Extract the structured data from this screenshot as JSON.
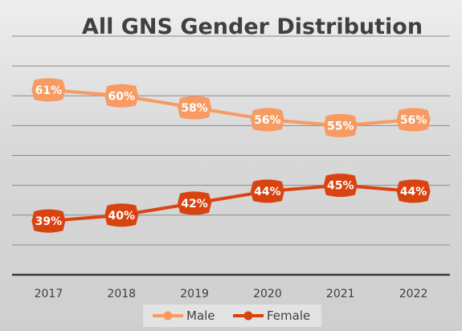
{
  "chart_data": {
    "type": "line",
    "title": "All GNS Gender Distribution",
    "categories": [
      "2017",
      "2018",
      "2019",
      "2020",
      "2021",
      "2022"
    ],
    "series": [
      {
        "name": "Male",
        "values": [
          61,
          60,
          58,
          56,
          55,
          56
        ],
        "labels": [
          "61%",
          "60%",
          "58%",
          "56%",
          "55%",
          "56%"
        ],
        "color": "#f79b62",
        "marker": "circle"
      },
      {
        "name": "Female",
        "values": [
          39,
          40,
          42,
          44,
          45,
          44
        ],
        "labels": [
          "39%",
          "40%",
          "42%",
          "44%",
          "45%",
          "44%"
        ],
        "color": "#d94310",
        "marker": "circle"
      }
    ],
    "ylim": [
      30,
      70
    ],
    "y_tick_labels_shown": false,
    "grid": true,
    "legend": "bottom"
  }
}
